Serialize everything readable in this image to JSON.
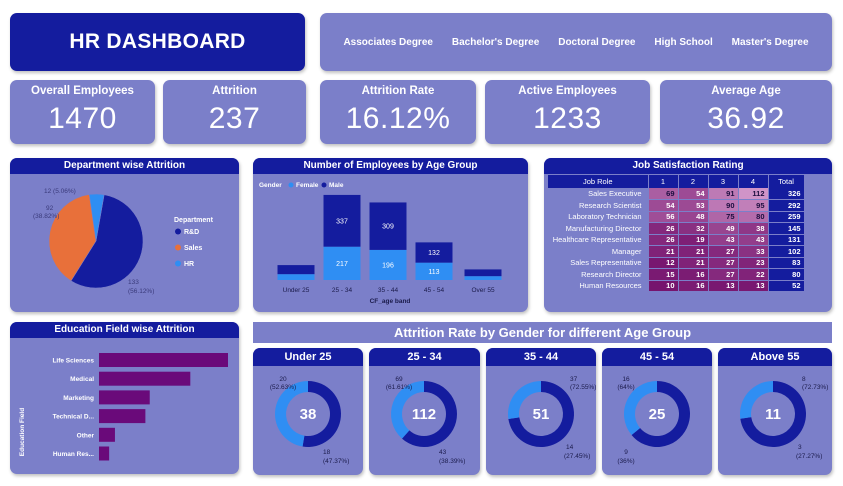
{
  "header": {
    "title": "HR DASHBOARD"
  },
  "education_filter": [
    "Associates Degree",
    "Bachelor's Degree",
    "Doctoral Degree",
    "High School",
    "Master's Degree"
  ],
  "kpis": [
    {
      "label": "Overall Employees",
      "value": "1470"
    },
    {
      "label": "Attrition",
      "value": "237"
    },
    {
      "label": "Attrition Rate",
      "value": "16.12%"
    },
    {
      "label": "Active Employees",
      "value": "1233"
    },
    {
      "label": "Average Age",
      "value": "36.92"
    }
  ],
  "colors": {
    "navy": "#141c9e",
    "card": "#7b7fc9",
    "orange": "#e8703a",
    "blue": "#2f8ef3",
    "purple": "#6a0a7a"
  },
  "chart_data": [
    {
      "type": "pie",
      "title": "Department wise Attrition",
      "legend_title": "Department",
      "legend_position": "right",
      "slices": [
        {
          "name": "R&D",
          "value": 133,
          "label": "133",
          "pct": "(56.12%)"
        },
        {
          "name": "Sales",
          "value": 92,
          "label": "92",
          "pct": "(38.82%)"
        },
        {
          "name": "HR",
          "value": 12,
          "label": "12 (5.06%)",
          "pct": ""
        }
      ]
    },
    {
      "type": "bar",
      "stacked": true,
      "title": "Number of Employees by Age Group",
      "legend_title": "Gender",
      "xlabel": "CF_age band",
      "categories": [
        "Under 25",
        "25 - 34",
        "35 - 44",
        "45 - 54",
        "Over 55"
      ],
      "series": [
        {
          "name": "Female",
          "values": [
            38,
            217,
            196,
            113,
            25
          ]
        },
        {
          "name": "Male",
          "values": [
            59,
            337,
            309,
            132,
            44
          ]
        }
      ],
      "data_labels": [
        [
          "",
          "217",
          "196",
          "113",
          ""
        ],
        [
          "",
          "337",
          "309",
          "132",
          ""
        ]
      ]
    },
    {
      "type": "table",
      "title": "Job Satisfaction Rating",
      "columns": [
        "Job Role",
        "1",
        "2",
        "3",
        "4",
        "Total"
      ],
      "rows": [
        {
          "role": "Sales Executive",
          "values": [
            69,
            54,
            91,
            112
          ],
          "total": 326
        },
        {
          "role": "Research Scientist",
          "values": [
            54,
            53,
            90,
            95
          ],
          "total": 292
        },
        {
          "role": "Laboratory Technician",
          "values": [
            56,
            48,
            75,
            80
          ],
          "total": 259
        },
        {
          "role": "Manufacturing Director",
          "values": [
            26,
            32,
            49,
            38
          ],
          "total": 145
        },
        {
          "role": "Healthcare Representative",
          "values": [
            26,
            19,
            43,
            43
          ],
          "total": 131
        },
        {
          "role": "Manager",
          "values": [
            21,
            21,
            27,
            33
          ],
          "total": 102
        },
        {
          "role": "Sales Representative",
          "values": [
            12,
            21,
            27,
            23
          ],
          "total": 83
        },
        {
          "role": "Research Director",
          "values": [
            15,
            16,
            27,
            22
          ],
          "total": 80
        },
        {
          "role": "Human Resources",
          "values": [
            10,
            16,
            13,
            13
          ],
          "total": 52
        }
      ]
    },
    {
      "type": "bar",
      "orientation": "horizontal",
      "title": "Education Field wise Attrition",
      "ylabel": "Education Field",
      "categories": [
        "Life Sciences",
        "Medical",
        "Marketing",
        "Technical D...",
        "Other",
        "Human Res..."
      ],
      "values": [
        89,
        63,
        35,
        32,
        11,
        7
      ]
    },
    {
      "type": "pie",
      "donut": true,
      "title": "Under 25",
      "center": "38",
      "slices": [
        {
          "name": "Male",
          "value": 20,
          "label": "20",
          "pct": "(52.63%)"
        },
        {
          "name": "Female",
          "value": 18,
          "label": "18",
          "pct": "(47.37%)"
        }
      ]
    },
    {
      "type": "pie",
      "donut": true,
      "title": "25 - 34",
      "center": "112",
      "slices": [
        {
          "name": "Male",
          "value": 69,
          "label": "69",
          "pct": "(61.61%)"
        },
        {
          "name": "Female",
          "value": 43,
          "label": "43",
          "pct": "(38.39%)"
        }
      ]
    },
    {
      "type": "pie",
      "donut": true,
      "title": "35 - 44",
      "center": "51",
      "slices": [
        {
          "name": "Male",
          "value": 37,
          "label": "37",
          "pct": "(72.55%)"
        },
        {
          "name": "Female",
          "value": 14,
          "label": "14",
          "pct": "(27.45%)"
        }
      ]
    },
    {
      "type": "pie",
      "donut": true,
      "title": "45 - 54",
      "center": "25",
      "slices": [
        {
          "name": "Male",
          "value": 16,
          "label": "16",
          "pct": "(64%)"
        },
        {
          "name": "Female",
          "value": 9,
          "label": "9",
          "pct": "(36%)"
        }
      ]
    },
    {
      "type": "pie",
      "donut": true,
      "title": "Above 55",
      "center": "11",
      "slices": [
        {
          "name": "Male",
          "value": 8,
          "label": "8",
          "pct": "(72.73%)"
        },
        {
          "name": "Female",
          "value": 3,
          "label": "3",
          "pct": "(27.27%)"
        }
      ]
    }
  ],
  "donut_section": {
    "title": "Attrition Rate by Gender for different Age Group"
  }
}
